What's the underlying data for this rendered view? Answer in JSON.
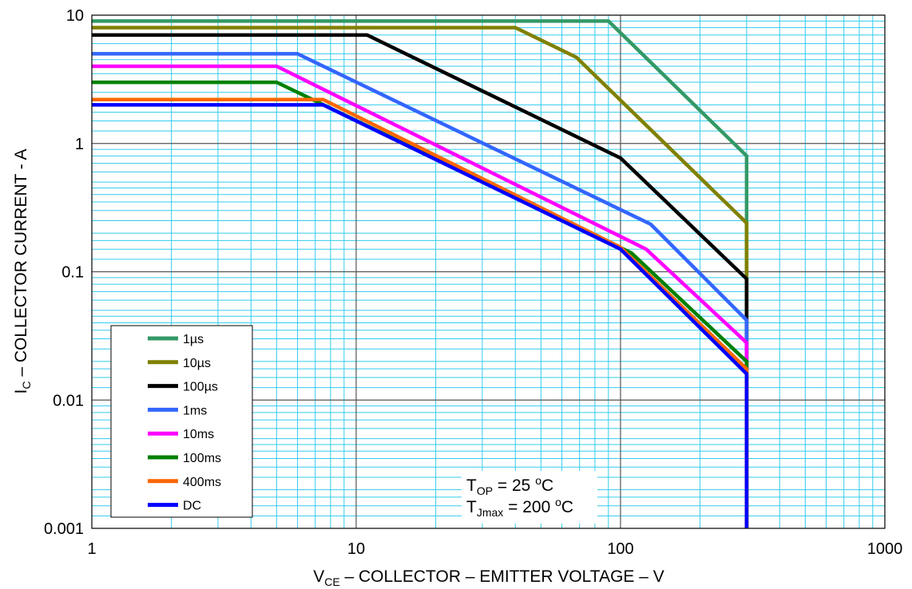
{
  "chart_data": {
    "type": "line",
    "x_scale": "log",
    "y_scale": "log",
    "xlim": [
      1,
      1000
    ],
    "ylim": [
      0.001,
      10
    ],
    "x_ticks": [
      "1",
      "10",
      "100",
      "1000"
    ],
    "y_ticks": [
      "0.001",
      "0.01",
      "0.1",
      "1",
      "10"
    ],
    "xlabel": {
      "main": "V",
      "sub": "CE",
      "rest": " – COLLECTOR – EMITTER VOLTAGE – V"
    },
    "ylabel": {
      "main": "I",
      "sub": "C",
      "rest": " – COLLECTOR CURRENT - A"
    },
    "grid": true,
    "grid_color": "#33ccee",
    "legend_position": "bottom-left",
    "annotations": [
      {
        "main": "T",
        "sub": "OP",
        "rest": " = 25 ",
        "sup": "o",
        "unit": "C"
      },
      {
        "main": "T",
        "sub": "Jmax",
        "rest": " = 200 ",
        "sup": "o",
        "unit": "C"
      }
    ],
    "series": [
      {
        "name": "1µs",
        "color": "#339966",
        "x": [
          1,
          90,
          300,
          300
        ],
        "y": [
          9,
          9,
          0.8,
          0.001
        ]
      },
      {
        "name": "10µs",
        "color": "#808000",
        "x": [
          1,
          40,
          68,
          300,
          300
        ],
        "y": [
          8,
          8,
          4.7,
          0.24,
          0.001
        ]
      },
      {
        "name": "100µs",
        "color": "#000000",
        "x": [
          1,
          11,
          100,
          300,
          300
        ],
        "y": [
          7,
          7,
          0.77,
          0.088,
          0.001
        ]
      },
      {
        "name": "1ms",
        "color": "#3366ff",
        "x": [
          1,
          6,
          130,
          300,
          300
        ],
        "y": [
          5,
          5,
          0.235,
          0.042,
          0.001
        ]
      },
      {
        "name": "10ms",
        "color": "#ff00ff",
        "x": [
          1,
          5,
          125,
          300,
          300
        ],
        "y": [
          4,
          4,
          0.15,
          0.028,
          0.001
        ]
      },
      {
        "name": "100ms",
        "color": "#008000",
        "x": [
          1,
          5,
          110,
          300,
          300
        ],
        "y": [
          3,
          3,
          0.14,
          0.02,
          0.001
        ]
      },
      {
        "name": "400ms",
        "color": "#ff6600",
        "x": [
          1,
          7.5,
          100,
          300,
          300
        ],
        "y": [
          2.2,
          2.2,
          0.155,
          0.0175,
          0.001
        ]
      },
      {
        "name": "DC",
        "color": "#0000ff",
        "x": [
          1,
          7.5,
          100,
          300,
          300
        ],
        "y": [
          2,
          2,
          0.15,
          0.016,
          0.001
        ]
      }
    ]
  }
}
